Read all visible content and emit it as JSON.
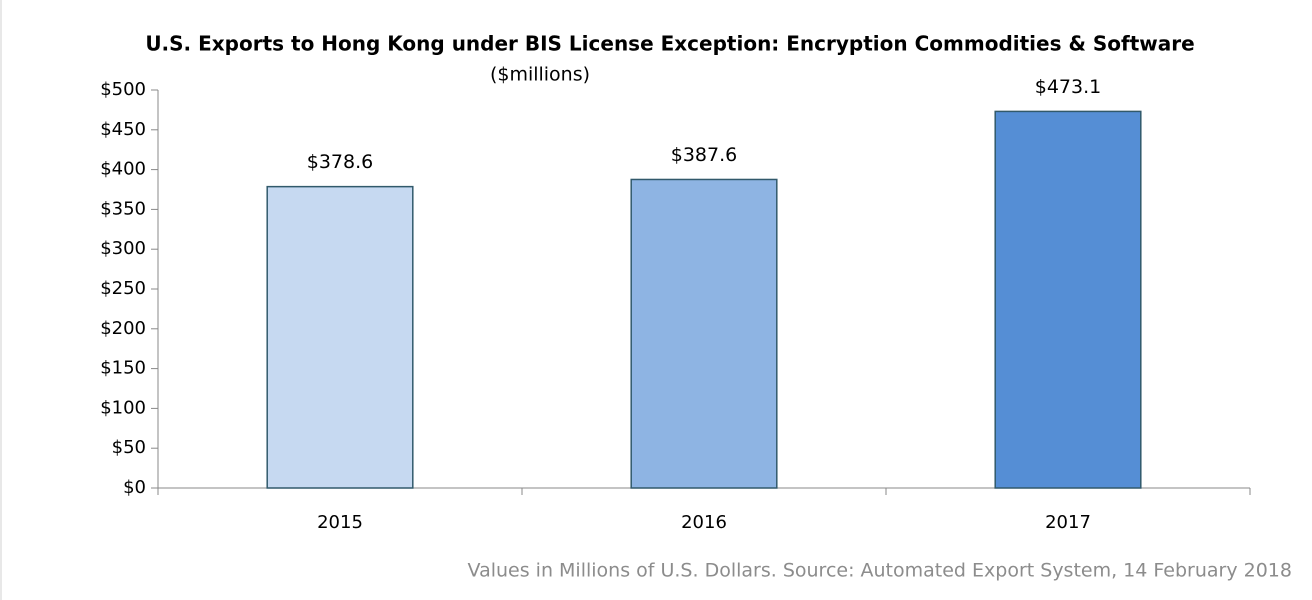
{
  "chart_data": {
    "type": "bar",
    "title": "U.S. Exports to Hong Kong under BIS License Exception: Encryption Commodities & Software",
    "subtitle": "($millions)",
    "footnote": "Values in Millions of U.S. Dollars. Source: Automated Export System, 14 February 2018",
    "categories": [
      "2015",
      "2016",
      "2017"
    ],
    "values": [
      378.6,
      387.6,
      473.1
    ],
    "value_labels": [
      "$378.6",
      "$387.6",
      "$473.1"
    ],
    "colors": [
      "#c6d9f1",
      "#8eb4e3",
      "#558ed5"
    ],
    "ylim": [
      0,
      500
    ],
    "yticks": [
      {
        "value": 0,
        "label": "$0"
      },
      {
        "value": 50,
        "label": "$50"
      },
      {
        "value": 100,
        "label": "$100"
      },
      {
        "value": 150,
        "label": "$150"
      },
      {
        "value": 200,
        "label": "$200"
      },
      {
        "value": 250,
        "label": "$250"
      },
      {
        "value": 300,
        "label": "$300"
      },
      {
        "value": 350,
        "label": "$350"
      },
      {
        "value": 400,
        "label": "$400"
      },
      {
        "value": 450,
        "label": "$450"
      },
      {
        "value": 500,
        "label": "$500"
      }
    ],
    "grid": false
  }
}
